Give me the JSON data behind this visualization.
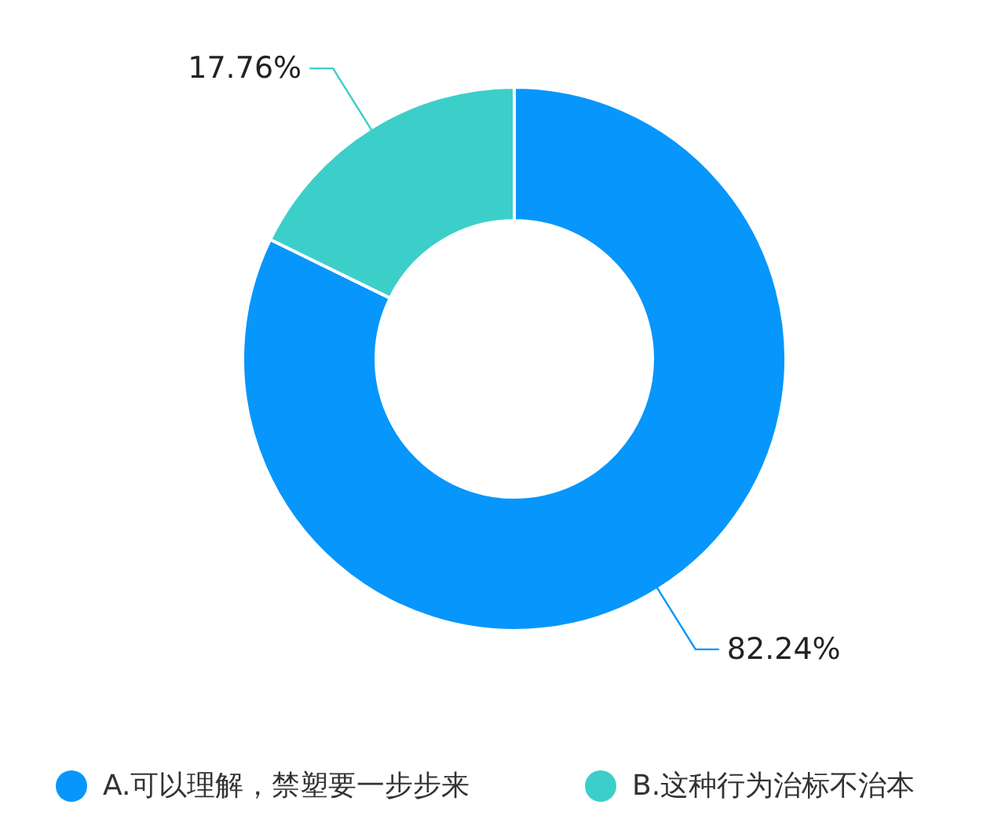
{
  "chart_data": {
    "type": "donut",
    "categories": [
      "A.可以理解，禁塑要一步步来",
      "B.这种行为治标不治本"
    ],
    "values": [
      82.24,
      17.76
    ],
    "colors": [
      "#0796fb",
      "#3ccfca"
    ],
    "value_labels": [
      "82.24%",
      "17.76%"
    ],
    "legend": "bottom"
  }
}
